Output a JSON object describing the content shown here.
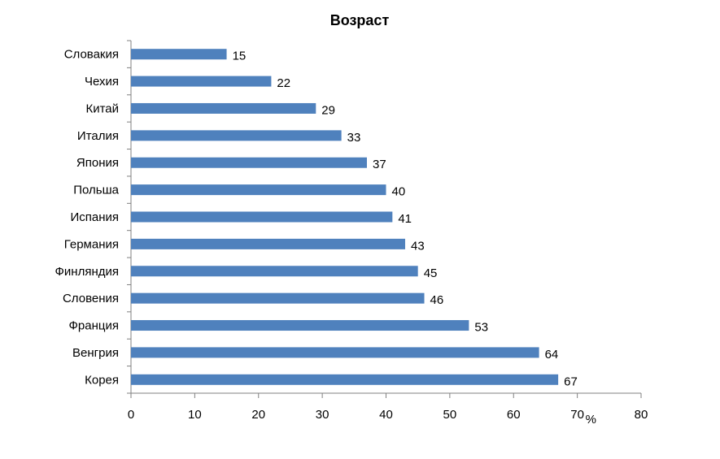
{
  "chart_data": {
    "type": "bar",
    "orientation": "horizontal",
    "title": "Возраст",
    "categories": [
      "Словакия",
      "Чехия",
      "Китай",
      "Италия",
      "Япония",
      "Польша",
      "Испания",
      "Германия",
      "Финляндия",
      "Словения",
      "Франция",
      "Венгрия",
      "Корея"
    ],
    "values": [
      15,
      22,
      29,
      33,
      37,
      40,
      41,
      43,
      45,
      46,
      53,
      64,
      67
    ],
    "xlim": [
      0,
      80
    ],
    "xticks": [
      0,
      10,
      20,
      30,
      40,
      50,
      60,
      70,
      80
    ],
    "x_unit": "%",
    "grid": false,
    "legend": "none",
    "bar_color": "#4F81BD"
  }
}
